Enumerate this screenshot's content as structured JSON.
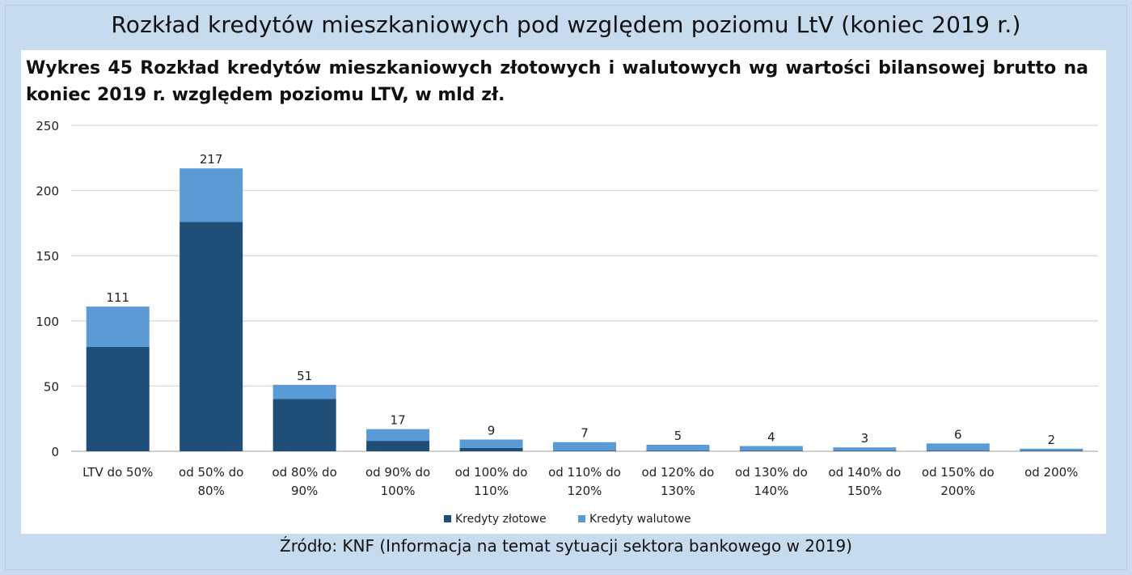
{
  "page": {
    "title": "Rozkład kredytów mieszkaniowych pod względem poziomu LtV (koniec 2019 r.)",
    "source": "Źródło: KNF (Informacja na temat sytuacji sektora bankowego w 2019)"
  },
  "colors": {
    "background": "#c7dbee",
    "panel": "#ffffff",
    "series_pln": "#1f4e79",
    "series_fx": "#5b9bd5",
    "grid": "#d9d9d9"
  },
  "chart_data": {
    "type": "bar",
    "stacked": true,
    "title": "Wykres 45 Rozkład kredytów mieszkaniowych złotowych i walutowych wg wartości bilansowej brutto na koniec 2019 r. względem poziomu LTV, w mld zł.",
    "xlabel": "",
    "ylabel": "",
    "ylim": [
      0,
      250
    ],
    "yticks": [
      0,
      50,
      100,
      150,
      200,
      250
    ],
    "grid": true,
    "legend_position": "bottom",
    "categories": [
      [
        "LTV do 50%"
      ],
      [
        "od 50% do",
        "80%"
      ],
      [
        "od 80% do",
        "90%"
      ],
      [
        "od 90% do",
        "100%"
      ],
      [
        "od 100% do",
        "110%"
      ],
      [
        "od 110% do",
        "120%"
      ],
      [
        "od 120% do",
        "130%"
      ],
      [
        "od 130% do",
        "140%"
      ],
      [
        "od 140% do",
        "150%"
      ],
      [
        "od 150% do",
        "200%"
      ],
      [
        "od 200%"
      ]
    ],
    "series": [
      {
        "name": "Kredyty złotowe",
        "color": "#1f4e79",
        "values": [
          80,
          176,
          40,
          8,
          2.5,
          0.5,
          0.5,
          0.5,
          0.5,
          0.5,
          0.5
        ]
      },
      {
        "name": "Kredyty walutowe",
        "color": "#5b9bd5",
        "values": [
          31,
          41,
          11,
          9,
          6.5,
          6.5,
          4.5,
          3.5,
          2.5,
          5.5,
          1.5
        ]
      }
    ],
    "totals": [
      111,
      217,
      51,
      17,
      9,
      7,
      5,
      4,
      3,
      6,
      2
    ]
  }
}
